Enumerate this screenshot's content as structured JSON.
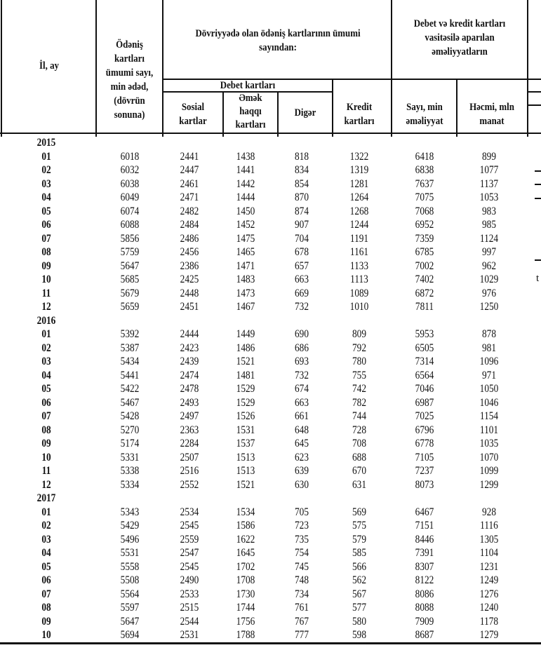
{
  "header": {
    "il_ay": "İl, ay",
    "total_cards": "Ödəniş kartları ümumi sayı, min ədəd, (dövrün sonuna)",
    "circulation_group": "Dövriyyədə olan ödəniş kartlarının ümumi sayından:",
    "debit_group": "Debet kartları",
    "social": "Sosial kartlar",
    "salary": "Əmək haqqı kartları",
    "other": "Digər",
    "credit": "Kredit kartları",
    "operations_group": "Debet və kredit  kartları vasitəsilə aparılan əməliyyatların",
    "ops_count": "Sayı, min əməliyyat",
    "ops_volume": "Həcmi, mln manat"
  },
  "clipped_fragment": "t",
  "years": [
    {
      "year": "2015",
      "rows": [
        [
          "01",
          "6018",
          "2441",
          "1438",
          "818",
          "1322",
          "6418",
          "899"
        ],
        [
          "02",
          "6032",
          "2447",
          "1441",
          "834",
          "1319",
          "6838",
          "1077"
        ],
        [
          "03",
          "6038",
          "2461",
          "1442",
          "854",
          "1281",
          "7637",
          "1137"
        ],
        [
          "04",
          "6049",
          "2471",
          "1444",
          "870",
          "1264",
          "7075",
          "1053"
        ],
        [
          "05",
          "6074",
          "2482",
          "1450",
          "874",
          "1268",
          "7068",
          "983"
        ],
        [
          "06",
          "6088",
          "2484",
          "1452",
          "907",
          "1244",
          "6952",
          "985"
        ],
        [
          "07",
          "5856",
          "2486",
          "1475",
          "704",
          "1191",
          "7359",
          "1124"
        ],
        [
          "08",
          "5759",
          "2456",
          "1465",
          "678",
          "1161",
          "6785",
          "997"
        ],
        [
          "09",
          "5647",
          "2386",
          "1471",
          "657",
          "1133",
          "7002",
          "962"
        ],
        [
          "10",
          "5685",
          "2425",
          "1483",
          "663",
          "1113",
          "7402",
          "1029"
        ],
        [
          "11",
          "5679",
          "2448",
          "1473",
          "669",
          "1089",
          "6872",
          "976"
        ],
        [
          "12",
          "5659",
          "2451",
          "1467",
          "732",
          "1010",
          "7811",
          "1250"
        ]
      ]
    },
    {
      "year": "2016",
      "rows": [
        [
          "01",
          "5392",
          "2444",
          "1449",
          "690",
          "809",
          "5953",
          "878"
        ],
        [
          "02",
          "5387",
          "2423",
          "1486",
          "686",
          "792",
          "6505",
          "981"
        ],
        [
          "03",
          "5434",
          "2439",
          "1521",
          "693",
          "780",
          "7314",
          "1096"
        ],
        [
          "04",
          "5441",
          "2474",
          "1481",
          "732",
          "755",
          "6564",
          "971"
        ],
        [
          "05",
          "5422",
          "2478",
          "1529",
          "674",
          "742",
          "7046",
          "1050"
        ],
        [
          "06",
          "5467",
          "2493",
          "1529",
          "663",
          "782",
          "6987",
          "1046"
        ],
        [
          "07",
          "5428",
          "2497",
          "1526",
          "661",
          "744",
          "7025",
          "1154"
        ],
        [
          "08",
          "5270",
          "2363",
          "1531",
          "648",
          "728",
          "6796",
          "1101"
        ],
        [
          "09",
          "5174",
          "2284",
          "1537",
          "645",
          "708",
          "6778",
          "1035"
        ],
        [
          "10",
          "5331",
          "2507",
          "1513",
          "623",
          "688",
          "7105",
          "1070"
        ],
        [
          "11",
          "5338",
          "2516",
          "1513",
          "639",
          "670",
          "7237",
          "1099"
        ],
        [
          "12",
          "5334",
          "2552",
          "1521",
          "630",
          "631",
          "8073",
          "1299"
        ]
      ]
    },
    {
      "year": "2017",
      "rows": [
        [
          "01",
          "5343",
          "2534",
          "1534",
          "705",
          "569",
          "6467",
          "928"
        ],
        [
          "02",
          "5429",
          "2545",
          "1586",
          "723",
          "575",
          "7151",
          "1116"
        ],
        [
          "03",
          "5496",
          "2559",
          "1622",
          "735",
          "579",
          "8446",
          "1305"
        ],
        [
          "04",
          "5531",
          "2547",
          "1645",
          "754",
          "585",
          "7391",
          "1104"
        ],
        [
          "05",
          "5558",
          "2545",
          "1702",
          "745",
          "566",
          "8307",
          "1231"
        ],
        [
          "06",
          "5508",
          "2490",
          "1708",
          "748",
          "562",
          "8122",
          "1249"
        ],
        [
          "07",
          "5564",
          "2533",
          "1730",
          "734",
          "567",
          "8086",
          "1276"
        ],
        [
          "08",
          "5597",
          "2515",
          "1744",
          "761",
          "577",
          "8088",
          "1240"
        ],
        [
          "09",
          "5647",
          "2544",
          "1756",
          "767",
          "580",
          "7909",
          "1178"
        ],
        [
          "10",
          "5694",
          "2531",
          "1788",
          "777",
          "598",
          "8687",
          "1279"
        ]
      ]
    }
  ]
}
